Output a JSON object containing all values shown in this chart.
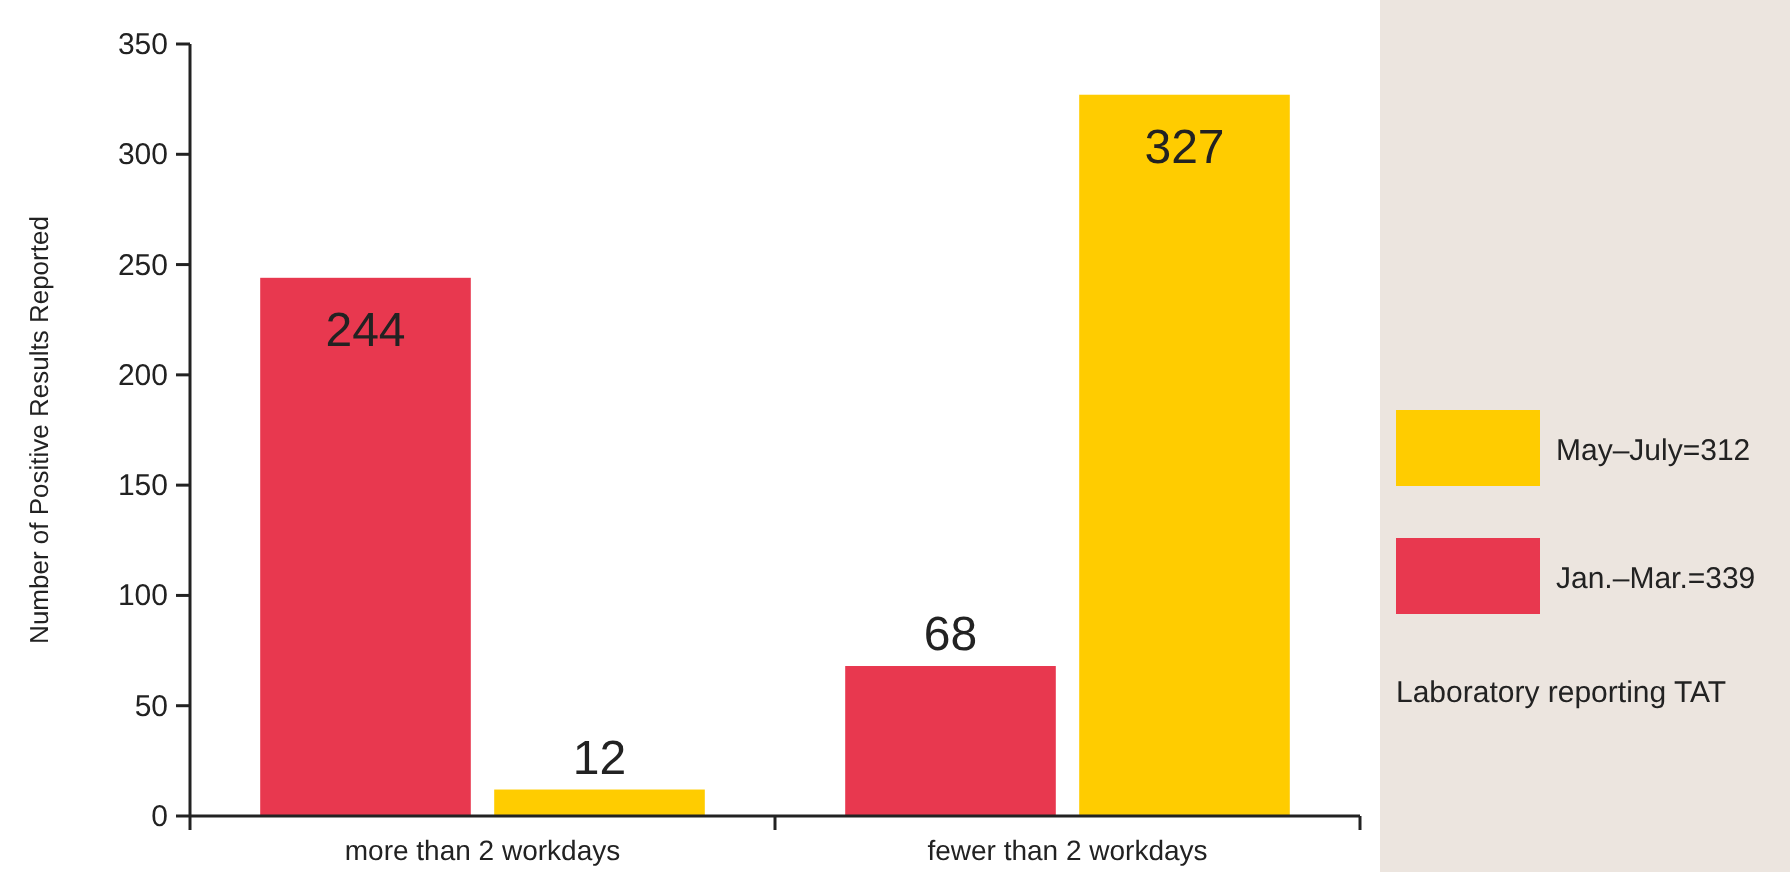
{
  "chart_data": {
    "type": "bar",
    "ylabel": "Number of Positive Results Reported",
    "categories": [
      "more than 2 workdays",
      "fewer than 2 workdays"
    ],
    "series": [
      {
        "name": "Jan.–Mar.=339",
        "color": "#e8384f",
        "values": [
          244,
          68
        ]
      },
      {
        "name": "May–July=312",
        "color": "#ffcc00",
        "values": [
          12,
          327
        ]
      }
    ],
    "ylim": [
      0,
      350
    ],
    "yticks": [
      0,
      50,
      100,
      150,
      200,
      250,
      300,
      350
    ],
    "data_labels": true,
    "legend": "right",
    "legend_title": "Laboratory reporting TAT",
    "grid": false
  }
}
